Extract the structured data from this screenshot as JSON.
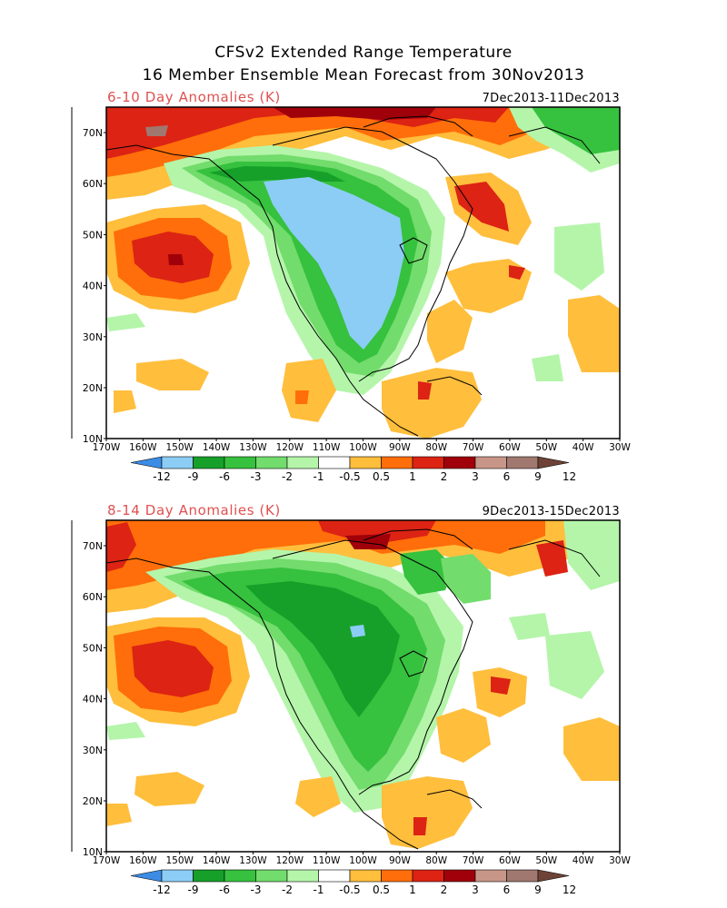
{
  "header": {
    "title_line1": "CFSv2 Extended Range Temperature",
    "title_line2": "16 Member Ensemble Mean Forecast from 30Nov2013"
  },
  "panels": [
    {
      "id": "p1",
      "subtitle": "6-10 Day Anomalies (K)",
      "date_range": "7Dec2013-11Dec2013"
    },
    {
      "id": "p2",
      "subtitle": "8-14 Day Anomalies (K)",
      "date_range": "9Dec2013-15Dec2013"
    }
  ],
  "axes": {
    "lat_labels": [
      "70N",
      "60N",
      "50N",
      "40N",
      "30N",
      "20N",
      "10N"
    ],
    "lon_labels": [
      "170W",
      "160W",
      "150W",
      "140W",
      "130W",
      "120W",
      "110W",
      "100W",
      "90W",
      "80W",
      "70W",
      "60W",
      "50W",
      "40W",
      "30W"
    ]
  },
  "colorbar": {
    "labels": [
      "-12",
      "-9",
      "-6",
      "-3",
      "-2",
      "-1",
      "-0.5",
      "0.5",
      "1",
      "2",
      "3",
      "6",
      "9",
      "12"
    ],
    "colors": [
      "#3c8ce6",
      "#8ccdf5",
      "#16a02a",
      "#36c13e",
      "#72dc6c",
      "#b4f5aa",
      "#ffffff",
      "#ffbe3c",
      "#ff6e0a",
      "#dc2314",
      "#a0000a",
      "#c89688",
      "#a07870",
      "#6e4237"
    ]
  }
}
